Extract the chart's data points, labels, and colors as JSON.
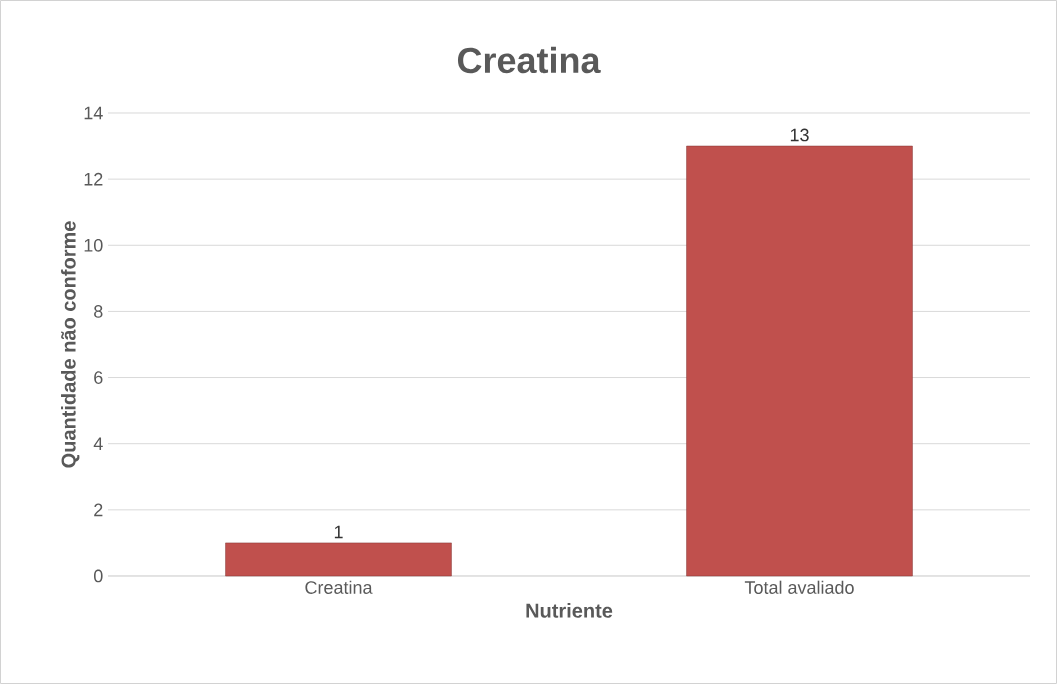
{
  "chart_data": {
    "type": "bar",
    "title": "Creatina",
    "xlabel": "Nutriente",
    "ylabel": "Quantidade não conforme",
    "categories": [
      "Creatina",
      "Total avaliado"
    ],
    "values": [
      1,
      13
    ],
    "color": "#c0504d",
    "ylim": [
      0,
      14
    ],
    "yticks": [
      0,
      2,
      4,
      6,
      8,
      10,
      12,
      14
    ],
    "grid": "y",
    "data_labels": true
  }
}
